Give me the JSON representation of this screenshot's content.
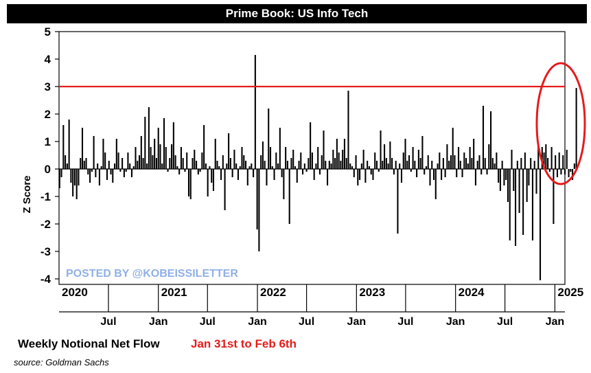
{
  "title": "Prime Book: US Info Tech",
  "footer": {
    "label": "Weekly Notional Net Flow",
    "range": "Jan 31st to Feb 6th",
    "source": "source: Goldman Sachs"
  },
  "watermark": "POSTED BY @KOBEISSILETTER",
  "colors": {
    "bars": "#000000",
    "threshold": "#e51b1b",
    "highlight": "#e51b1b"
  },
  "chart_data": {
    "type": "bar",
    "ylabel": "Z Score",
    "ylim": [
      -4.2,
      5
    ],
    "yticks": [
      -4,
      -3,
      -2,
      -1,
      0,
      1,
      2,
      3,
      4,
      5
    ],
    "xrange": [
      "2020-01-01",
      "2025-02-07"
    ],
    "year_labels": [
      {
        "label": "2020",
        "date": "2020-01-01"
      },
      {
        "label": "2021",
        "date": "2021-01-01"
      },
      {
        "label": "2022",
        "date": "2022-01-01"
      },
      {
        "label": "2023",
        "date": "2023-01-01"
      },
      {
        "label": "2024",
        "date": "2024-01-01"
      },
      {
        "label": "2025",
        "date": "2025-01-01"
      }
    ],
    "month_ticks": [
      {
        "label": "Jul",
        "date": "2020-07-01"
      },
      {
        "label": "Jan",
        "date": "2021-01-01"
      },
      {
        "label": "Jul",
        "date": "2021-07-01"
      },
      {
        "label": "Jan",
        "date": "2022-01-01"
      },
      {
        "label": "Jul",
        "date": "2022-07-01"
      },
      {
        "label": "Jan",
        "date": "2023-01-01"
      },
      {
        "label": "Jul",
        "date": "2023-07-01"
      },
      {
        "label": "Jan",
        "date": "2024-01-01"
      },
      {
        "label": "Jul",
        "date": "2024-07-01"
      },
      {
        "label": "Jan",
        "date": "2025-01-01"
      }
    ],
    "threshold": 3,
    "grid": false,
    "series": [
      {
        "start_date": "2020-01-03",
        "interval_days": 7,
        "values": [
          -0.7,
          -0.3,
          1.6,
          0.5,
          0.2,
          1.8,
          -0.5,
          -1,
          -0.6,
          -1.1,
          -0.6,
          0.4,
          1.5,
          0.3,
          0.4,
          -0.2,
          -0.5,
          -0.1,
          1.2,
          -0.3,
          0.2,
          -0.6,
          0.1,
          1.1,
          0.6,
          -0.4,
          0.3,
          -0.2,
          -0.5,
          0.2,
          1.1,
          0.6,
          -0.1,
          0.4,
          -0.3,
          -0.1,
          0.6,
          0.2,
          -0.3,
          0.1,
          0.8,
          0.3,
          0.5,
          1.2,
          0.4,
          1.9,
          0.2,
          2.25,
          0.8,
          0.5,
          1.1,
          0.4,
          1.5,
          0.9,
          0.2,
          1.85,
          0.8,
          -0.1,
          0.4,
          0.9,
          1.7,
          0.5,
          0.1,
          -0.2,
          0.8,
          0.4,
          -0.1,
          0.6,
          -1,
          -1.1,
          0.4,
          0.7,
          0.3,
          -0.2,
          -0.1,
          0.6,
          1.6,
          0.2,
          -1,
          0.1,
          -0.5,
          -0.8,
          1.1,
          0.3,
          0.1,
          -0.4,
          0.5,
          -1.5,
          0.2,
          1.3,
          0.4,
          -0.3,
          0.7,
          0.2,
          -0.4,
          0.1,
          0.8,
          0.5,
          0.3,
          -0.6,
          0.1,
          0.2,
          -0.3,
          4.15,
          -2.2,
          -3,
          0.5,
          1,
          0.3,
          -0.6,
          2.2,
          0.8,
          0.1,
          -0.4,
          0.6,
          0.2,
          1.5,
          -0.3,
          -1.1,
          0.8,
          0.3,
          -2,
          0.4,
          0.7,
          0.1,
          -0.5,
          0.3,
          0.6,
          -0.2,
          0.2,
          -0.1,
          0.4,
          1.7,
          0.6,
          -0.4,
          0.2,
          0.8,
          -0.2,
          0.5,
          1.4,
          0.3,
          -0.6,
          0.3,
          0.2,
          0.7,
          0.4,
          1.1,
          0.6,
          0.3,
          0.7,
          1.1,
          0.4,
          2.85,
          0.2,
          0.1,
          -0.3,
          0.5,
          -0.6,
          -0.4,
          0.2,
          0.7,
          -0.5,
          0.3,
          0.1,
          -0.2,
          -0.4,
          0.6,
          0.3,
          -0.1,
          1.4,
          0.3,
          0.9,
          0.4,
          0.2,
          1,
          0.4,
          -0.2,
          0.3,
          -2.35,
          0.2,
          -0.5,
          0.6,
          1.1,
          0.3,
          0.5,
          -0.1,
          0.8,
          0.3,
          -0.3,
          0.7,
          0.4,
          1.2,
          -0.2,
          0.1,
          0.5,
          -0.6,
          0.3,
          -0.4,
          -1.1,
          0.2,
          0.6,
          -0.4,
          0.4,
          -0.3,
          0.9,
          0.3,
          0.5,
          1.5,
          0.5,
          -0.3,
          0.8,
          0.3,
          -0.3,
          0.6,
          0.4,
          0.2,
          0.8,
          0.4,
          1.1,
          -0.6,
          0.3,
          0.5,
          -0.2,
          2.3,
          0.4,
          -0.2,
          0.9,
          2.1,
          0.4,
          0.2,
          0.6,
          -0.5,
          -0.8,
          0.3,
          -0.6,
          -0.4,
          -1.2,
          -2.6,
          0.7,
          -0.8,
          -2.8,
          0.3,
          -1.6,
          0.4,
          -2.4,
          0.6,
          -1.2,
          -0.6,
          0.4,
          -2.6,
          0.3,
          -0.9,
          0.8,
          -4.05,
          0.8,
          0.6,
          0.9,
          0.4,
          -0.1,
          0.8,
          -2,
          0.5,
          -0.3,
          0.6,
          -0.2,
          0.5,
          -0.2,
          0.7,
          -0.3,
          -0.1,
          -0.4,
          0.2,
          2.95
        ]
      }
    ]
  }
}
